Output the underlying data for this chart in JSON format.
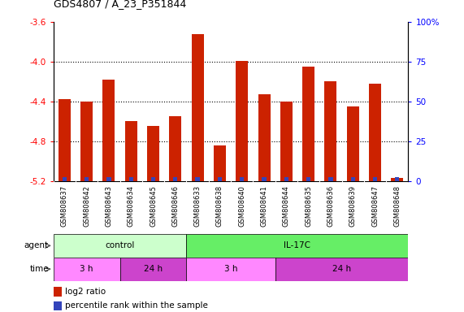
{
  "title": "GDS4807 / A_23_P351844",
  "samples": [
    "GSM808637",
    "GSM808642",
    "GSM808643",
    "GSM808634",
    "GSM808645",
    "GSM808646",
    "GSM808633",
    "GSM808638",
    "GSM808640",
    "GSM808641",
    "GSM808644",
    "GSM808635",
    "GSM808636",
    "GSM808639",
    "GSM808647",
    "GSM808648"
  ],
  "log2_ratio": [
    -4.38,
    -4.4,
    -4.18,
    -4.6,
    -4.65,
    -4.55,
    -3.72,
    -4.84,
    -3.99,
    -4.33,
    -4.4,
    -4.05,
    -4.2,
    -4.45,
    -4.22,
    -5.17
  ],
  "percentile_pct": [
    2,
    2,
    4,
    2,
    2,
    3,
    3,
    2,
    3,
    3,
    3,
    3,
    4,
    2,
    3,
    1
  ],
  "ylim": [
    -5.2,
    -3.6
  ],
  "yticks": [
    -5.2,
    -4.8,
    -4.4,
    -4.0,
    -3.6
  ],
  "right_yticks": [
    0,
    25,
    50,
    75,
    100
  ],
  "dotted_lines": [
    -4.0,
    -4.4,
    -4.8
  ],
  "bar_color": "#cc2200",
  "blue_color": "#3344bb",
  "bg_color": "#ffffff",
  "sample_bg": "#dddddd",
  "agent_control_color": "#ccffcc",
  "agent_il17c_color": "#66ee66",
  "time_3h_color": "#ff88ff",
  "time_24h_color": "#cc44cc",
  "agent_groups": [
    {
      "label": "control",
      "start": 0,
      "end": 6
    },
    {
      "label": "IL-17C",
      "start": 6,
      "end": 16
    }
  ],
  "time_groups": [
    {
      "label": "3 h",
      "start": 0,
      "end": 3
    },
    {
      "label": "24 h",
      "start": 3,
      "end": 6
    },
    {
      "label": "3 h",
      "start": 6,
      "end": 10
    },
    {
      "label": "24 h",
      "start": 10,
      "end": 16
    }
  ],
  "legend_items": [
    {
      "color": "#cc2200",
      "label": "log2 ratio"
    },
    {
      "color": "#3344bb",
      "label": "percentile rank within the sample"
    }
  ]
}
